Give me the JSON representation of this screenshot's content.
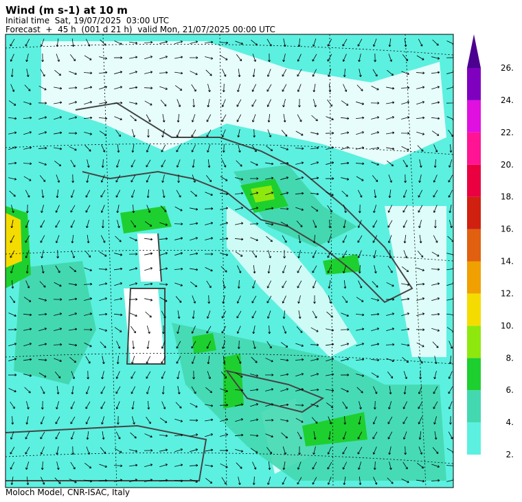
{
  "header": {
    "title": "Wind (m s-1) at 10 m",
    "initial_time": "Initial time  Sat, 19/07/2025  03:00 UTC",
    "forecast": "Forecast  +  45 h  (001 d 21 h)  valid Mon, 21/07/2025 00:00 UTC"
  },
  "colorbar": {
    "levels": [
      {
        "value": 2,
        "label": "2."
      },
      {
        "value": 4,
        "label": "4."
      },
      {
        "value": 6,
        "label": "6."
      },
      {
        "value": 8,
        "label": "8."
      },
      {
        "value": 10,
        "label": "10."
      },
      {
        "value": 12,
        "label": "12."
      },
      {
        "value": 14,
        "label": "14."
      },
      {
        "value": 16,
        "label": "16."
      },
      {
        "value": 18,
        "label": "18."
      },
      {
        "value": 20,
        "label": "20."
      },
      {
        "value": 22,
        "label": "22."
      },
      {
        "value": 24,
        "label": "24."
      },
      {
        "value": 26,
        "label": "26."
      }
    ],
    "colors": [
      "#5cf0e0",
      "#44d8b0",
      "#1ecf30",
      "#8ee80e",
      "#f5dc00",
      "#f0a000",
      "#e06010",
      "#d02010",
      "#ea0040",
      "#ff1493",
      "#e010e0",
      "#8000c0"
    ],
    "extend_color": "#4b0090"
  },
  "footer": "Moloch Model, CNR-ISAC, Italy"
}
